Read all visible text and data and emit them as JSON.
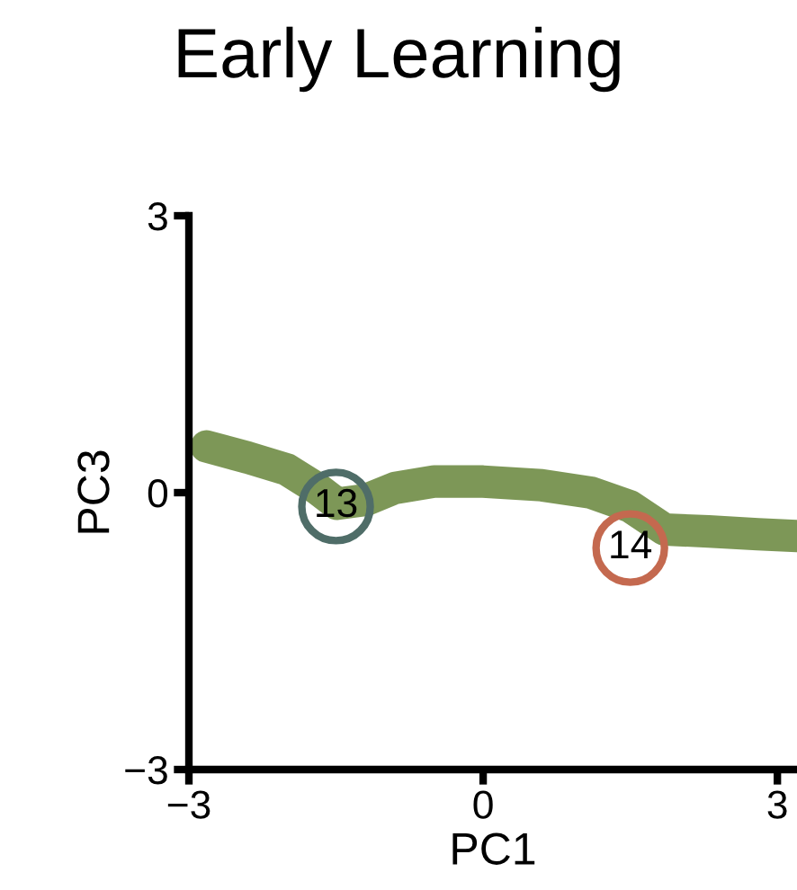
{
  "chart_data": {
    "type": "line",
    "title": "Early Learning",
    "xlabel": "PC1",
    "ylabel": "PC3",
    "series": [
      {
        "color": "#6f8c45",
        "x": [
          -2.82,
          -2.4,
          -2.0,
          -1.7,
          -1.49,
          -1.2,
          -0.9,
          -0.5,
          0.0,
          0.6,
          1.1,
          1.5,
          1.85,
          2.3,
          2.8,
          3.2
        ],
        "values": [
          0.5,
          0.38,
          0.25,
          0.05,
          -0.12,
          -0.08,
          0.05,
          0.12,
          0.12,
          0.08,
          0.0,
          -0.15,
          -0.4,
          -0.42,
          -0.45,
          -0.47
        ]
      },
      {
        "type": "scatter",
        "colors": [
          "#4f6d68",
          "#c4694f"
        ],
        "x": [
          -1.5,
          1.5
        ],
        "values": [
          -0.15,
          -0.6
        ]
      }
    ],
    "annotations": [
      {
        "text": "13",
        "x": -1.5,
        "y": -0.15
      },
      {
        "text": "14",
        "x": 1.5,
        "y": -0.6
      }
    ],
    "xlim": [
      -3,
      3.2
    ],
    "ylim": [
      -3,
      3
    ],
    "xticks": [
      {
        "value": -3,
        "label": "−3"
      },
      0,
      3
    ],
    "yticks": [
      {
        "value": -3,
        "label": "−3"
      },
      0,
      3
    ],
    "grid": false,
    "legend": false
  }
}
